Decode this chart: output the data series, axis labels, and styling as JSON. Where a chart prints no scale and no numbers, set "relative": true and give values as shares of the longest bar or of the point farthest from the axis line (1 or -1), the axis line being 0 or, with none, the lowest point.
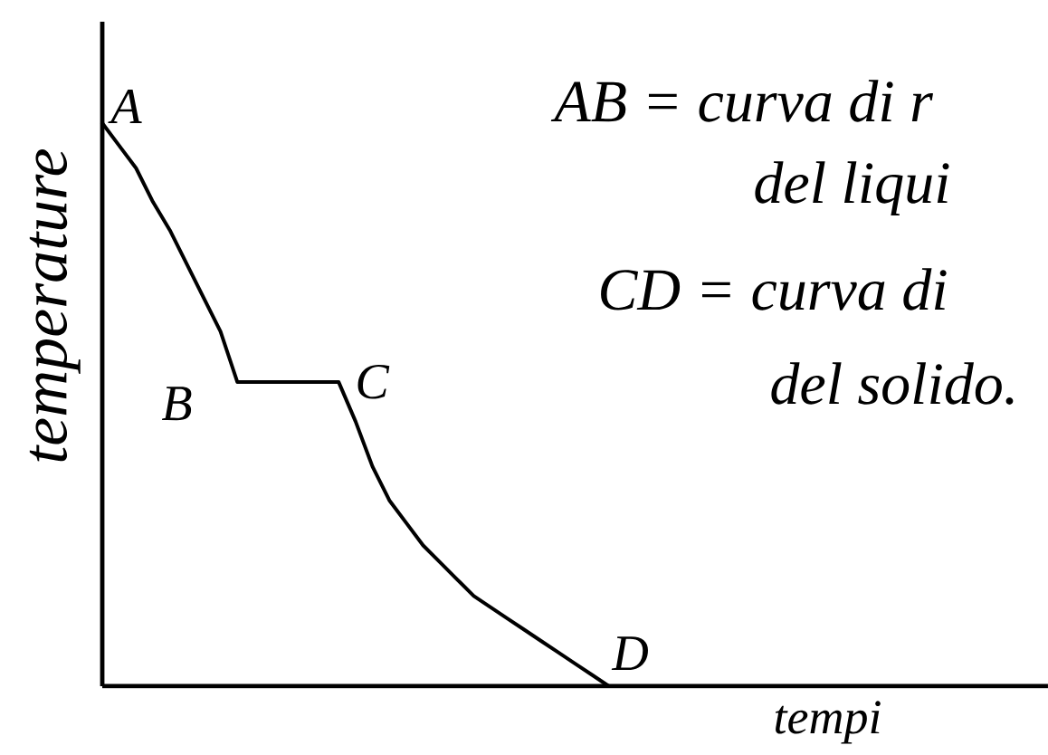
{
  "chart_data": {
    "type": "line",
    "relative": true,
    "xlabel": "tempi",
    "ylabel": "temperature",
    "color": "#000000",
    "line_style": "solid",
    "categories": [
      null,
      null,
      null,
      null,
      null,
      null,
      null,
      null,
      null,
      null,
      null,
      null,
      null,
      null,
      null,
      null,
      null,
      null,
      null,
      null,
      null,
      null,
      null,
      null,
      null,
      null,
      null,
      null,
      null,
      null,
      null,
      null,
      null,
      null,
      null,
      null,
      null,
      null,
      null,
      null,
      null,
      null,
      null,
      null,
      null,
      null,
      null,
      null,
      null,
      null,
      null,
      null,
      null,
      null,
      null,
      null,
      null
    ],
    "values": [
      1.0,
      0.96,
      0.92,
      0.86,
      0.81,
      0.75,
      0.69,
      0.63,
      0.54,
      0.54,
      0.54,
      0.54,
      0.54,
      0.54,
      0.54,
      0.47,
      0.39,
      0.33,
      0.29,
      0.25,
      0.22,
      0.19,
      0.16,
      0.14,
      0.12,
      0.1,
      0.08,
      0.06,
      0.04,
      0.02,
      0,
      null,
      null,
      null,
      null,
      null,
      null,
      null,
      null,
      null,
      null,
      null,
      null,
      null,
      null,
      null,
      null,
      null,
      null,
      null,
      null,
      null,
      null,
      null,
      null,
      null,
      null
    ],
    "annotations": [
      "A",
      "B",
      "C",
      "D",
      "AB = curva di r",
      "del liqui",
      "CD = curva di",
      "del solido."
    ]
  }
}
